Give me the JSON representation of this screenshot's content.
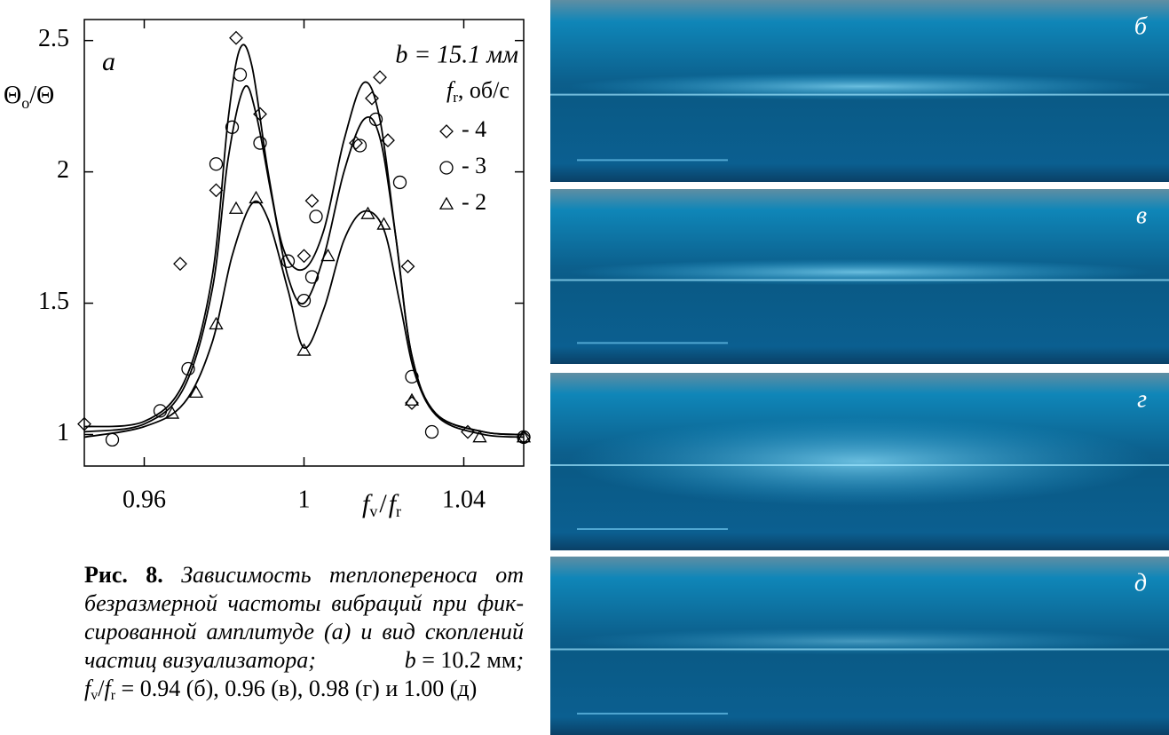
{
  "chart_data": {
    "type": "scatter",
    "panel_label": "a",
    "ylabel": {
      "main": "Θ",
      "sub": "o",
      "rest": "/Θ"
    },
    "xlabel": {
      "f1": "f",
      "sub1": "v",
      "slash": "/",
      "f2": "f",
      "sub2": "r"
    },
    "annotation": "b = 15.1 мм",
    "legend_title": {
      "symbol": "f",
      "sub": "r",
      "rest": ", об/с"
    },
    "xlim": [
      0.945,
      1.055
    ],
    "ylim": [
      0.88,
      2.58
    ],
    "xticks": [
      0.96,
      1,
      1.04
    ],
    "yticks": [
      1,
      1.5,
      2,
      2.5
    ],
    "series": [
      {
        "name": "- 4",
        "marker": "diamond",
        "color": "#000000",
        "x": [
          0.945,
          0.969,
          0.978,
          0.983,
          0.989,
          1.0,
          1.002,
          1.013,
          1.017,
          1.019,
          1.021,
          1.026,
          1.027,
          1.041,
          1.055
        ],
        "values": [
          1.04,
          1.65,
          1.93,
          2.51,
          2.22,
          1.68,
          1.89,
          2.11,
          2.28,
          2.36,
          2.12,
          1.64,
          1.12,
          1.01,
          0.99
        ]
      },
      {
        "name": "- 3",
        "marker": "circle",
        "color": "#000000",
        "x": [
          0.952,
          0.964,
          0.971,
          0.978,
          0.982,
          0.984,
          0.989,
          0.996,
          1.0,
          1.002,
          1.003,
          1.014,
          1.018,
          1.024,
          1.027,
          1.032,
          1.055
        ],
        "values": [
          0.98,
          1.09,
          1.25,
          2.03,
          2.17,
          2.37,
          2.11,
          1.66,
          1.51,
          1.6,
          1.83,
          2.1,
          2.2,
          1.96,
          1.22,
          1.01,
          0.99
        ]
      },
      {
        "name": "- 2",
        "marker": "triangle",
        "color": "#000000",
        "x": [
          0.967,
          0.973,
          0.978,
          0.983,
          0.988,
          1.0,
          1.006,
          1.016,
          1.02,
          1.027,
          1.044,
          1.055
        ],
        "values": [
          1.08,
          1.16,
          1.42,
          1.86,
          1.9,
          1.32,
          1.68,
          1.84,
          1.8,
          1.13,
          0.99,
          0.99
        ]
      }
    ],
    "fits": [
      {
        "x": [
          0.945,
          0.96,
          0.97,
          0.977,
          0.981,
          0.984,
          0.987,
          0.991,
          0.995,
          1.0,
          1.005,
          1.01,
          1.015,
          1.019,
          1.023,
          1.027,
          1.033,
          1.045,
          1.055
        ],
        "values": [
          1.03,
          1.05,
          1.2,
          1.6,
          2.2,
          2.47,
          2.4,
          2.0,
          1.7,
          1.63,
          1.78,
          2.12,
          2.34,
          2.2,
          1.75,
          1.3,
          1.08,
          1.01,
          1.0
        ]
      },
      {
        "x": [
          0.945,
          0.96,
          0.97,
          0.977,
          0.981,
          0.985,
          0.988,
          0.992,
          0.996,
          1.0,
          1.005,
          1.01,
          1.015,
          1.019,
          1.023,
          1.027,
          1.033,
          1.045,
          1.055
        ],
        "values": [
          1.01,
          1.04,
          1.18,
          1.55,
          2.05,
          2.32,
          2.22,
          1.9,
          1.6,
          1.5,
          1.68,
          2.0,
          2.2,
          2.13,
          1.75,
          1.3,
          1.08,
          1.01,
          1.0
        ]
      },
      {
        "x": [
          0.945,
          0.96,
          0.97,
          0.977,
          0.982,
          0.987,
          0.991,
          0.996,
          1.0,
          1.005,
          1.01,
          1.015,
          1.02,
          1.024,
          1.028,
          1.034,
          1.045,
          1.055
        ],
        "values": [
          0.99,
          1.03,
          1.12,
          1.35,
          1.68,
          1.88,
          1.82,
          1.55,
          1.33,
          1.48,
          1.74,
          1.85,
          1.78,
          1.5,
          1.22,
          1.06,
          1.0,
          0.99
        ]
      }
    ]
  },
  "photos": [
    {
      "label": "б"
    },
    {
      "label": "в"
    },
    {
      "label": "г"
    },
    {
      "label": "д"
    }
  ],
  "caption": {
    "figure": "Рис. 8.",
    "lines": [
      "Зависимость теплопереноса от",
      "безразмерной частоты вибраций при фик-",
      "сированной амплитуде (а) и вид скоплений"
    ],
    "line4a": "частиц визуализатора;",
    "b_sym": "b",
    "b_rest": "= 10.2 мм",
    "semicolon": ";",
    "last": {
      "f1": "f",
      "sub1": "v",
      "slash": "/",
      "f2": "f",
      "sub2": "r",
      "rest": "= 0.94 (б), 0.96 (в), 0.98 (г) и 1.00 (д)"
    }
  }
}
